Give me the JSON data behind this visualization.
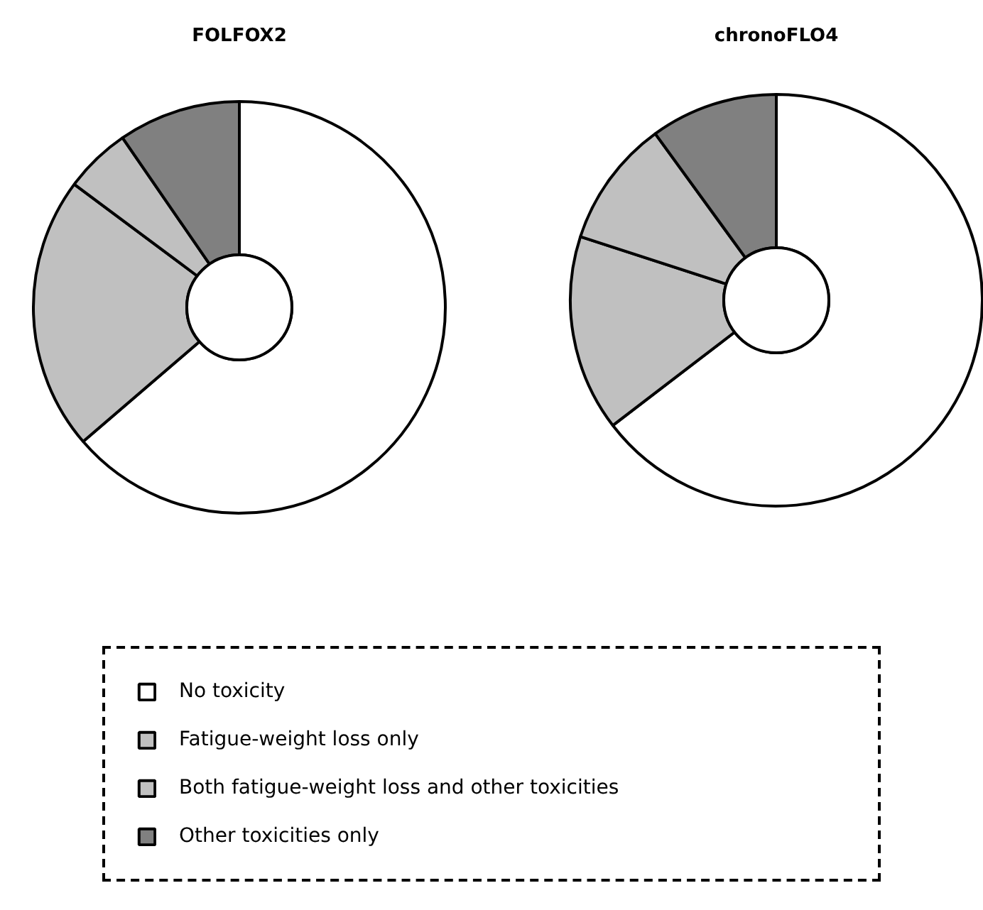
{
  "chart_data": [
    {
      "type": "donut",
      "title": "FOLFOX2",
      "categories": [
        "No toxicity",
        "Fatigue-weight loss only",
        "Both fatigue-weight loss and other toxicities",
        "Other toxicities only"
      ],
      "values": [
        63.7,
        21.5,
        5.2,
        9.6
      ],
      "colors": [
        "#ffffff",
        "#c0c0c0",
        "#c0c0c0",
        "#808080"
      ],
      "legend": "bottom"
    },
    {
      "type": "donut",
      "title": "chronoFLO4",
      "categories": [
        null,
        null,
        null,
        null
      ],
      "values": [
        64.6,
        15.4,
        10.0,
        10.0
      ],
      "colors": [
        "#ffffff",
        "#c0c0c0",
        "#c0c0c0",
        "#808080"
      ]
    }
  ]
}
